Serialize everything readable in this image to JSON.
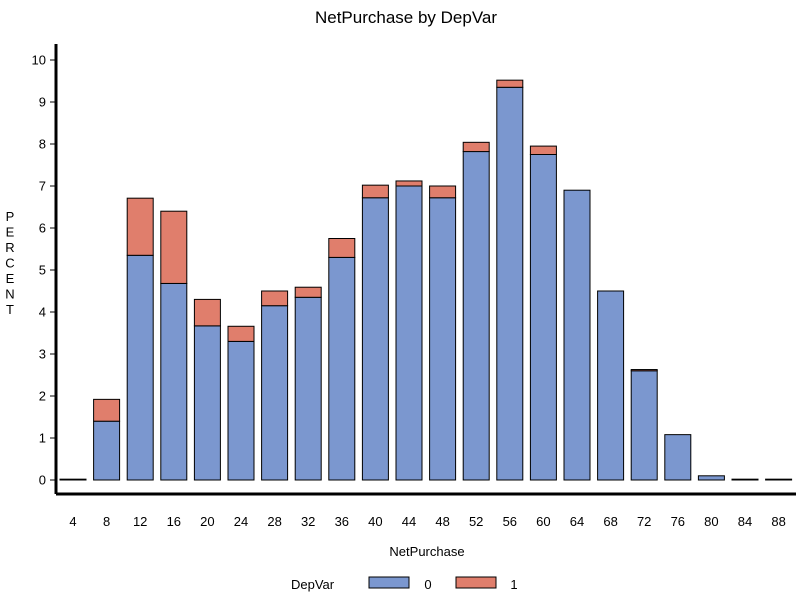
{
  "chart_data": {
    "type": "bar",
    "stacked": true,
    "title": "NetPurchase by DepVar",
    "xlabel": "NetPurchase",
    "ylabel": "PERCENT",
    "ylim": [
      0,
      10
    ],
    "yticks": [
      0,
      1,
      2,
      3,
      4,
      5,
      6,
      7,
      8,
      9,
      10
    ],
    "categories": [
      "4",
      "8",
      "12",
      "16",
      "20",
      "24",
      "28",
      "32",
      "36",
      "40",
      "44",
      "48",
      "52",
      "56",
      "60",
      "64",
      "68",
      "72",
      "76",
      "80",
      "84",
      "88"
    ],
    "legend_title": "DepVar",
    "legend_position": "bottom",
    "grid": false,
    "series": [
      {
        "name": "0",
        "color": "#7b97cf",
        "values": [
          0.02,
          1.4,
          5.35,
          4.68,
          3.67,
          3.3,
          4.15,
          4.35,
          5.3,
          6.72,
          7.0,
          6.72,
          7.82,
          9.35,
          7.75,
          6.9,
          4.5,
          2.6,
          1.08,
          0.1,
          0.02,
          0.02
        ]
      },
      {
        "name": "1",
        "color": "#e07e6c",
        "values": [
          0.0,
          0.52,
          1.36,
          1.72,
          0.63,
          0.36,
          0.35,
          0.24,
          0.45,
          0.3,
          0.12,
          0.28,
          0.22,
          0.17,
          0.2,
          0.0,
          0.0,
          0.03,
          0.0,
          0.0,
          0.0,
          0.0
        ]
      }
    ]
  }
}
